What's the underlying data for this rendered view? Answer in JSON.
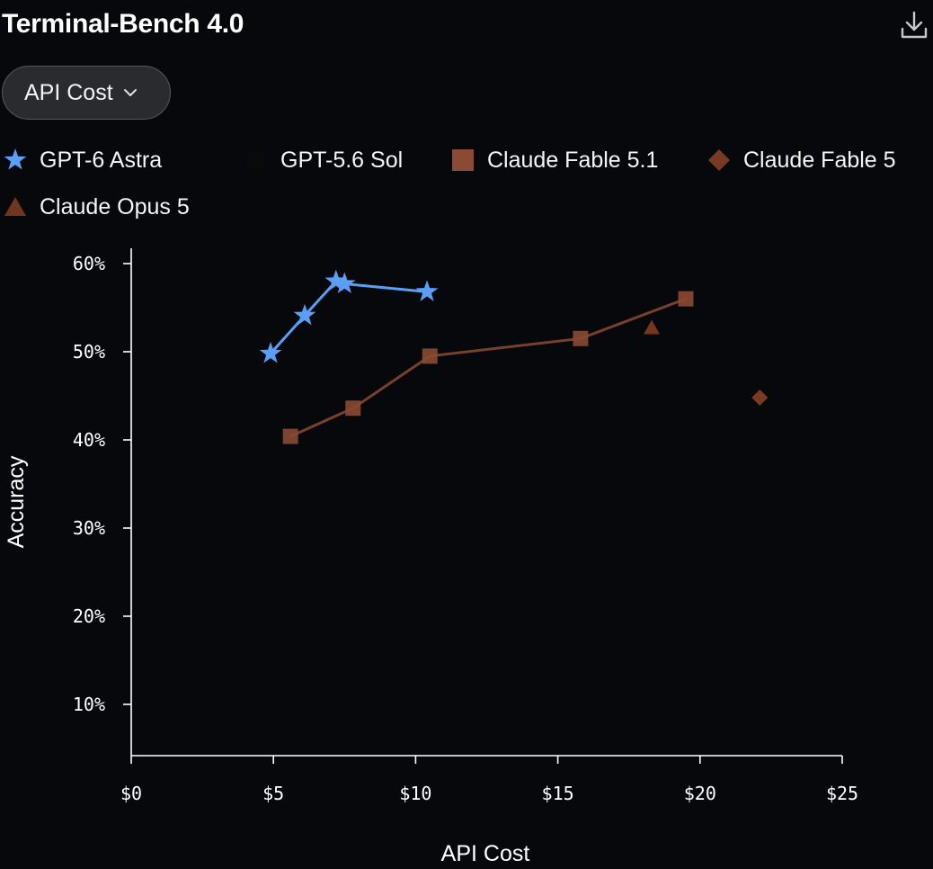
{
  "header": {
    "title": "Terminal-Bench 4.0",
    "download_icon": "download-icon"
  },
  "metric_selector": {
    "selected": "API Cost",
    "icon": "chevron-down-icon"
  },
  "colors": {
    "background": "#07080b",
    "gpt6_astra": "#5b9ef5",
    "gpt56_sol": "#0a0a0a",
    "claude_fable_51": "#8a4a33",
    "claude_fable_5": "#7a3a22",
    "claude_opus_5": "#72361f",
    "axis": "#ffffff"
  },
  "chart_data": {
    "type": "scatter",
    "title": "Terminal-Bench 4.0",
    "xlabel": "API Cost",
    "ylabel": "Accuracy",
    "xlim": [
      0,
      25
    ],
    "ylim": [
      5,
      60
    ],
    "x_ticks": [
      0,
      5,
      10,
      15,
      20,
      25
    ],
    "x_tick_labels": [
      "$0",
      "$5",
      "$10",
      "$15",
      "$20",
      "$25"
    ],
    "y_ticks": [
      10,
      20,
      30,
      40,
      50,
      60
    ],
    "y_tick_labels": [
      "10%",
      "20%",
      "30%",
      "40%",
      "50%",
      "60%"
    ],
    "grid": false,
    "legend_position": "top",
    "series": [
      {
        "name": "GPT-6 Astra",
        "marker": "star",
        "connected": true,
        "points": [
          {
            "x": 4.9,
            "y": 49.8
          },
          {
            "x": 6.1,
            "y": 54.1
          },
          {
            "x": 7.2,
            "y": 58.0
          },
          {
            "x": 7.5,
            "y": 57.7
          },
          {
            "x": 10.4,
            "y": 56.8
          }
        ]
      },
      {
        "name": "GPT-5.6 Sol",
        "marker": "circle",
        "connected": false,
        "points": []
      },
      {
        "name": "Claude Fable 5.1",
        "marker": "square",
        "connected": true,
        "points": [
          {
            "x": 5.6,
            "y": 40.4
          },
          {
            "x": 7.8,
            "y": 43.6
          },
          {
            "x": 10.5,
            "y": 49.5
          },
          {
            "x": 15.8,
            "y": 51.5
          },
          {
            "x": 19.5,
            "y": 56.0
          }
        ]
      },
      {
        "name": "Claude Fable 5",
        "marker": "diamond",
        "connected": false,
        "points": [
          {
            "x": 22.1,
            "y": 44.8
          }
        ]
      },
      {
        "name": "Claude Opus 5",
        "marker": "triangle",
        "connected": false,
        "points": [
          {
            "x": 18.3,
            "y": 52.7
          }
        ]
      }
    ]
  }
}
